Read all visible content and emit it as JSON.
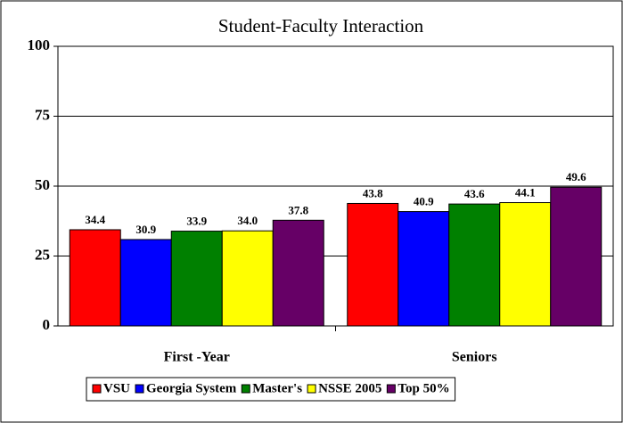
{
  "chart_data": {
    "type": "bar",
    "title": "Student-Faculty Interaction",
    "categories": [
      "First -Year",
      "Seniors"
    ],
    "series": [
      {
        "name": "VSU",
        "color": "#ff0000",
        "values": [
          34.4,
          43.8
        ],
        "value_labels": [
          "34.4",
          "43.8"
        ]
      },
      {
        "name": "Georgia System",
        "color": "#0000ff",
        "values": [
          30.9,
          40.9
        ],
        "value_labels": [
          "30.9",
          "40.9"
        ]
      },
      {
        "name": "Master's",
        "color": "#008000",
        "values": [
          33.9,
          43.6
        ],
        "value_labels": [
          "33.9",
          "43.6"
        ]
      },
      {
        "name": "NSSE 2005",
        "color": "#ffff00",
        "values": [
          34.0,
          44.1
        ],
        "value_labels": [
          "34.0",
          "44.1"
        ]
      },
      {
        "name": "Top 50%",
        "color": "#660066",
        "values": [
          37.8,
          49.6
        ],
        "value_labels": [
          "37.8",
          "49.6"
        ]
      }
    ],
    "ylim": [
      0,
      100
    ],
    "yticks": [
      0,
      25,
      50,
      75,
      100
    ],
    "grid": true,
    "legend": "bottom"
  }
}
